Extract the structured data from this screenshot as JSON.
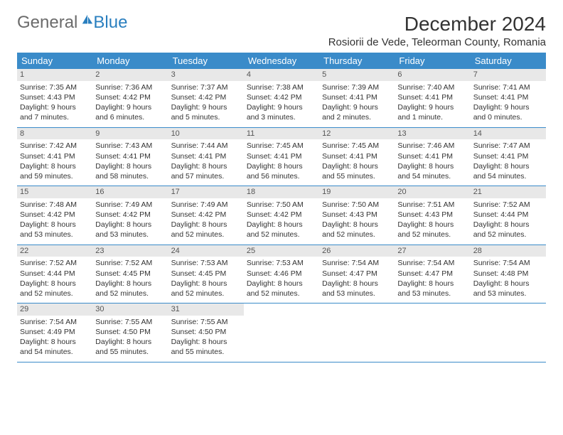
{
  "logo": {
    "general": "General",
    "blue": "Blue",
    "accent_color": "#2a7fbf"
  },
  "title": "December 2024",
  "location": "Rosiorii de Vede, Teleorman County, Romania",
  "day_headers": [
    "Sunday",
    "Monday",
    "Tuesday",
    "Wednesday",
    "Thursday",
    "Friday",
    "Saturday"
  ],
  "colors": {
    "header_bg": "#3a8bc9",
    "header_text": "#ffffff",
    "daynum_bg": "#e8e8e8",
    "border": "#3a8bc9",
    "text": "#333333"
  },
  "weeks": [
    [
      {
        "num": "1",
        "sunrise": "7:35 AM",
        "sunset": "4:43 PM",
        "daylight": "9 hours and 7 minutes."
      },
      {
        "num": "2",
        "sunrise": "7:36 AM",
        "sunset": "4:42 PM",
        "daylight": "9 hours and 6 minutes."
      },
      {
        "num": "3",
        "sunrise": "7:37 AM",
        "sunset": "4:42 PM",
        "daylight": "9 hours and 5 minutes."
      },
      {
        "num": "4",
        "sunrise": "7:38 AM",
        "sunset": "4:42 PM",
        "daylight": "9 hours and 3 minutes."
      },
      {
        "num": "5",
        "sunrise": "7:39 AM",
        "sunset": "4:41 PM",
        "daylight": "9 hours and 2 minutes."
      },
      {
        "num": "6",
        "sunrise": "7:40 AM",
        "sunset": "4:41 PM",
        "daylight": "9 hours and 1 minute."
      },
      {
        "num": "7",
        "sunrise": "7:41 AM",
        "sunset": "4:41 PM",
        "daylight": "9 hours and 0 minutes."
      }
    ],
    [
      {
        "num": "8",
        "sunrise": "7:42 AM",
        "sunset": "4:41 PM",
        "daylight": "8 hours and 59 minutes."
      },
      {
        "num": "9",
        "sunrise": "7:43 AM",
        "sunset": "4:41 PM",
        "daylight": "8 hours and 58 minutes."
      },
      {
        "num": "10",
        "sunrise": "7:44 AM",
        "sunset": "4:41 PM",
        "daylight": "8 hours and 57 minutes."
      },
      {
        "num": "11",
        "sunrise": "7:45 AM",
        "sunset": "4:41 PM",
        "daylight": "8 hours and 56 minutes."
      },
      {
        "num": "12",
        "sunrise": "7:45 AM",
        "sunset": "4:41 PM",
        "daylight": "8 hours and 55 minutes."
      },
      {
        "num": "13",
        "sunrise": "7:46 AM",
        "sunset": "4:41 PM",
        "daylight": "8 hours and 54 minutes."
      },
      {
        "num": "14",
        "sunrise": "7:47 AM",
        "sunset": "4:41 PM",
        "daylight": "8 hours and 54 minutes."
      }
    ],
    [
      {
        "num": "15",
        "sunrise": "7:48 AM",
        "sunset": "4:42 PM",
        "daylight": "8 hours and 53 minutes."
      },
      {
        "num": "16",
        "sunrise": "7:49 AM",
        "sunset": "4:42 PM",
        "daylight": "8 hours and 53 minutes."
      },
      {
        "num": "17",
        "sunrise": "7:49 AM",
        "sunset": "4:42 PM",
        "daylight": "8 hours and 52 minutes."
      },
      {
        "num": "18",
        "sunrise": "7:50 AM",
        "sunset": "4:42 PM",
        "daylight": "8 hours and 52 minutes."
      },
      {
        "num": "19",
        "sunrise": "7:50 AM",
        "sunset": "4:43 PM",
        "daylight": "8 hours and 52 minutes."
      },
      {
        "num": "20",
        "sunrise": "7:51 AM",
        "sunset": "4:43 PM",
        "daylight": "8 hours and 52 minutes."
      },
      {
        "num": "21",
        "sunrise": "7:52 AM",
        "sunset": "4:44 PM",
        "daylight": "8 hours and 52 minutes."
      }
    ],
    [
      {
        "num": "22",
        "sunrise": "7:52 AM",
        "sunset": "4:44 PM",
        "daylight": "8 hours and 52 minutes."
      },
      {
        "num": "23",
        "sunrise": "7:52 AM",
        "sunset": "4:45 PM",
        "daylight": "8 hours and 52 minutes."
      },
      {
        "num": "24",
        "sunrise": "7:53 AM",
        "sunset": "4:45 PM",
        "daylight": "8 hours and 52 minutes."
      },
      {
        "num": "25",
        "sunrise": "7:53 AM",
        "sunset": "4:46 PM",
        "daylight": "8 hours and 52 minutes."
      },
      {
        "num": "26",
        "sunrise": "7:54 AM",
        "sunset": "4:47 PM",
        "daylight": "8 hours and 53 minutes."
      },
      {
        "num": "27",
        "sunrise": "7:54 AM",
        "sunset": "4:47 PM",
        "daylight": "8 hours and 53 minutes."
      },
      {
        "num": "28",
        "sunrise": "7:54 AM",
        "sunset": "4:48 PM",
        "daylight": "8 hours and 53 minutes."
      }
    ],
    [
      {
        "num": "29",
        "sunrise": "7:54 AM",
        "sunset": "4:49 PM",
        "daylight": "8 hours and 54 minutes."
      },
      {
        "num": "30",
        "sunrise": "7:55 AM",
        "sunset": "4:50 PM",
        "daylight": "8 hours and 55 minutes."
      },
      {
        "num": "31",
        "sunrise": "7:55 AM",
        "sunset": "4:50 PM",
        "daylight": "8 hours and 55 minutes."
      },
      null,
      null,
      null,
      null
    ]
  ]
}
